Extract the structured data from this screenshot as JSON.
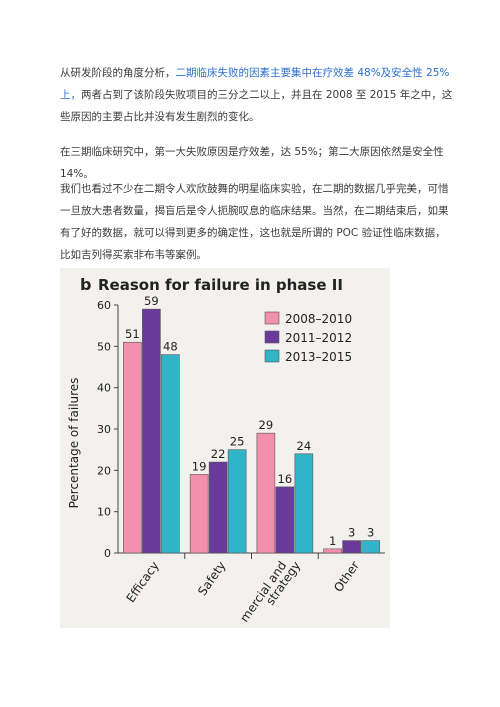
{
  "paragraph1": {
    "a": "从研发阶段的角度分析，",
    "b": "二期临床失败的因素主要集中在疗效差 48%及安全性 25%上，",
    "c": "两者占到了该阶段失败项目的三分之二以上，并且在 2008 至 2015 年之中，这些原因的主要占比并没有发生剧烈的变化。"
  },
  "paragraph2": "在三期临床研究中，第一大失败原因是疗效差，达 55%；第二大原因依然是安全性 14%。",
  "paragraph3": "我们也看过不少在二期令人欢欣鼓舞的明星临床实验，在二期的数据几乎完美，可惜一旦放大患者数量，揭盲后是令人扼腕叹息的临床结果。当然，在二期结束后，如果有了好的数据，就可以得到更多的确定性，这也就是所谓的 POC 验证性临床数据，比如吉列得买索非布韦等案例。",
  "figure": {
    "panel_letter": "b",
    "title": "Reason for failure in phase II"
  },
  "colors": {
    "series_2008_2010": "#f28fae",
    "series_2011_2012": "#6a3a9a",
    "series_2013_2015": "#2fb4c8",
    "chart_bg": "#f3f1ee",
    "highlight_text": "#2a6fd1"
  },
  "chart_data": {
    "type": "bar",
    "title": "Reason for failure in phase II",
    "xlabel": "",
    "ylabel": "Percentage of failures",
    "ylim": [
      0,
      60
    ],
    "yticks": [
      0,
      10,
      20,
      30,
      40,
      50,
      60
    ],
    "categories": [
      "Efficacy",
      "Safety",
      "mercial and strategy",
      "Other"
    ],
    "series": [
      {
        "name": "2008–2010",
        "values": [
          51,
          19,
          29,
          1
        ]
      },
      {
        "name": "2011–2012",
        "values": [
          59,
          22,
          16,
          3
        ]
      },
      {
        "name": "2013–2015",
        "values": [
          48,
          25,
          24,
          3
        ]
      }
    ],
    "legend": "top-right",
    "grid": false
  }
}
